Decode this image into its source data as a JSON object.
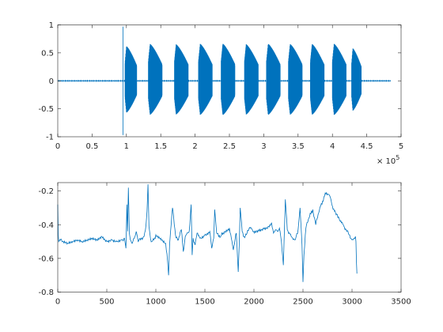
{
  "chart_data": [
    {
      "type": "line",
      "title": "",
      "xlabel": "",
      "ylabel": "",
      "xlim": [
        0,
        500000
      ],
      "ylim": [
        -1,
        1
      ],
      "xticks": [
        0,
        50000,
        100000,
        150000,
        200000,
        250000,
        300000,
        350000,
        400000,
        450000,
        500000
      ],
      "xtick_labels": [
        "0",
        "0.5",
        "1",
        "1.5",
        "2",
        "2.5",
        "3",
        "3.5",
        "4",
        "4.5",
        "5"
      ],
      "yticks": [
        -1,
        -0.5,
        0,
        0.5,
        1
      ],
      "ytick_labels": [
        "-1",
        "-0.5",
        "0",
        "0.5",
        "1"
      ],
      "x_exponent_base": "× 10",
      "x_exponent_power": "5",
      "grid": false,
      "legend": "none",
      "signal_end": 485000,
      "transient": {
        "x": 95000,
        "min": -0.97,
        "max": 0.97
      },
      "bursts": [
        {
          "start": 98000,
          "end": 115000,
          "peak": 0.62
        },
        {
          "start": 132000,
          "end": 152000,
          "peak": 0.66
        },
        {
          "start": 170000,
          "end": 190000,
          "peak": 0.66
        },
        {
          "start": 205000,
          "end": 225000,
          "peak": 0.66
        },
        {
          "start": 238000,
          "end": 258000,
          "peak": 0.67
        },
        {
          "start": 272000,
          "end": 292000,
          "peak": 0.66
        },
        {
          "start": 304000,
          "end": 324000,
          "peak": 0.66
        },
        {
          "start": 336000,
          "end": 356000,
          "peak": 0.66
        },
        {
          "start": 368000,
          "end": 388000,
          "peak": 0.66
        },
        {
          "start": 400000,
          "end": 420000,
          "peak": 0.66
        },
        {
          "start": 428000,
          "end": 442000,
          "peak": 0.58
        }
      ],
      "series": [
        {
          "color": "#0072bd"
        }
      ]
    },
    {
      "type": "line",
      "title": "",
      "xlabel": "",
      "ylabel": "",
      "xlim": [
        0,
        3500
      ],
      "ylim": [
        -0.8,
        -0.15
      ],
      "xticks": [
        0,
        500,
        1000,
        1500,
        2000,
        2500,
        3000,
        3500
      ],
      "xtick_labels": [
        "0",
        "500",
        "1000",
        "1500",
        "2000",
        "2500",
        "3000",
        "3500"
      ],
      "yticks": [
        -0.8,
        -0.6,
        -0.4,
        -0.2
      ],
      "ytick_labels": [
        "-0.8",
        "-0.6",
        "-0.4",
        "-0.2"
      ],
      "grid": false,
      "legend": "none",
      "series": [
        {
          "color": "#0072bd",
          "x": [
            0,
            5,
            10,
            20,
            50,
            100,
            150,
            200,
            250,
            300,
            350,
            400,
            450,
            500,
            550,
            600,
            650,
            680,
            695,
            705,
            712,
            720,
            730,
            740,
            760,
            780,
            800,
            820,
            850,
            880,
            900,
            910,
            920,
            930,
            945,
            960,
            980,
            1000,
            1050,
            1100,
            1120,
            1130,
            1140,
            1150,
            1170,
            1200,
            1230,
            1260,
            1280,
            1300,
            1340,
            1360,
            1370,
            1380,
            1400,
            1420,
            1450,
            1500,
            1550,
            1570,
            1590,
            1600,
            1620,
            1660,
            1700,
            1750,
            1790,
            1820,
            1840,
            1850,
            1860,
            1880,
            1900,
            1930,
            1960,
            2000,
            2050,
            2100,
            2150,
            2180,
            2200,
            2220,
            2240,
            2260,
            2280,
            2300,
            2320,
            2340,
            2380,
            2420,
            2450,
            2470,
            2490,
            2500,
            2510,
            2530,
            2560,
            2600,
            2630,
            2660,
            2680,
            2700,
            2720,
            2740,
            2760,
            2780,
            2800,
            2820,
            2850,
            2880,
            2910,
            2940,
            2970,
            3000,
            3020,
            3035,
            3040,
            3045,
            3050
          ],
          "y": [
            -0.28,
            -0.46,
            -0.5,
            -0.49,
            -0.5,
            -0.51,
            -0.5,
            -0.49,
            -0.5,
            -0.49,
            -0.48,
            -0.49,
            -0.47,
            -0.5,
            -0.49,
            -0.5,
            -0.49,
            -0.48,
            -0.54,
            -0.28,
            -0.44,
            -0.18,
            -0.45,
            -0.49,
            -0.51,
            -0.48,
            -0.44,
            -0.5,
            -0.48,
            -0.47,
            -0.4,
            -0.32,
            -0.16,
            -0.41,
            -0.48,
            -0.5,
            -0.49,
            -0.46,
            -0.48,
            -0.51,
            -0.62,
            -0.7,
            -0.52,
            -0.44,
            -0.3,
            -0.46,
            -0.49,
            -0.43,
            -0.56,
            -0.47,
            -0.44,
            -0.28,
            -0.58,
            -0.48,
            -0.52,
            -0.45,
            -0.48,
            -0.46,
            -0.44,
            -0.54,
            -0.48,
            -0.31,
            -0.45,
            -0.47,
            -0.44,
            -0.42,
            -0.55,
            -0.45,
            -0.68,
            -0.52,
            -0.3,
            -0.44,
            -0.47,
            -0.45,
            -0.42,
            -0.44,
            -0.43,
            -0.42,
            -0.41,
            -0.39,
            -0.45,
            -0.43,
            -0.44,
            -0.42,
            -0.5,
            -0.64,
            -0.25,
            -0.43,
            -0.47,
            -0.49,
            -0.43,
            -0.3,
            -0.52,
            -0.74,
            -0.58,
            -0.42,
            -0.36,
            -0.31,
            -0.4,
            -0.33,
            -0.29,
            -0.26,
            -0.23,
            -0.21,
            -0.22,
            -0.24,
            -0.29,
            -0.32,
            -0.34,
            -0.38,
            -0.4,
            -0.43,
            -0.46,
            -0.49,
            -0.48,
            -0.47,
            -0.5,
            -0.62,
            -0.69
          ]
        }
      ]
    }
  ]
}
